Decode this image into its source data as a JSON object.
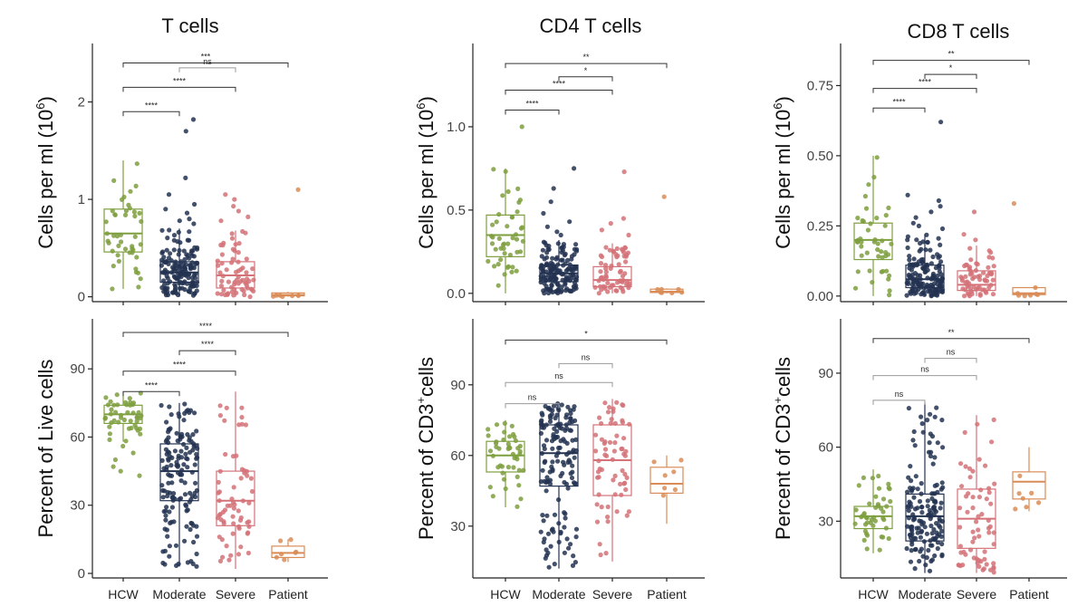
{
  "figure": {
    "categories": [
      "HCW",
      "Moderate",
      "Severe",
      "Patient"
    ],
    "category_colors": [
      "#7E9F3E",
      "#233251",
      "#D47278",
      "#D98C57"
    ],
    "column_titles": [
      "T cells",
      "CD4 T cells",
      "CD8 T cells"
    ]
  },
  "chart_data": [
    {
      "type": "box",
      "title": "T cells",
      "ylabel": "Cells per ml (10^6)",
      "ylabel_parts": [
        "Cells per ml (10",
        "6",
        ")"
      ],
      "categories": [
        "HCW",
        "Moderate",
        "Severe",
        "Patient"
      ],
      "ylim": [
        -0.05,
        2.6
      ],
      "yticks": [
        0,
        1,
        2
      ],
      "ytick_labels": [
        "0",
        "1",
        "2"
      ],
      "boxes": [
        {
          "q1": 0.46,
          "median": 0.65,
          "q3": 0.9,
          "whisker_low": 0.08,
          "whisker_high": 1.4,
          "n": 45
        },
        {
          "q1": 0.15,
          "median": 0.25,
          "q3": 0.36,
          "whisker_low": 0.0,
          "whisker_high": 0.7,
          "n": 150,
          "outliers": [
            1.82,
            1.7,
            1.22,
            1.05,
            0.95,
            0.9,
            0.86,
            0.8,
            0.78,
            0.75
          ]
        },
        {
          "q1": 0.09,
          "median": 0.22,
          "q3": 0.36,
          "whisker_low": 0.0,
          "whisker_high": 0.68,
          "n": 65,
          "outliers": [
            1.05,
            1.0,
            0.93,
            0.88,
            0.82,
            0.78
          ]
        },
        {
          "q1": 0.01,
          "median": 0.02,
          "q3": 0.04,
          "whisker_low": 0.0,
          "whisker_high": 0.05,
          "n": 7,
          "outliers": [
            1.1
          ]
        }
      ],
      "significance": [
        {
          "from": 0,
          "to": 3,
          "label": "***",
          "y": 2.4
        },
        {
          "from": 1,
          "to": 2,
          "label": "ns",
          "y": 2.35
        },
        {
          "from": 0,
          "to": 2,
          "label": "****",
          "y": 2.15
        },
        {
          "from": 0,
          "to": 1,
          "label": "****",
          "y": 1.9
        }
      ]
    },
    {
      "type": "box",
      "title": "CD4 T cells",
      "ylabel": "Cells per ml (10^6)",
      "ylabel_parts": [
        "Cells per ml (10",
        "6",
        ")"
      ],
      "categories": [
        "HCW",
        "Moderate",
        "Severe",
        "Patient"
      ],
      "ylim": [
        -0.05,
        1.5
      ],
      "yticks": [
        0.0,
        0.5,
        1.0
      ],
      "ytick_labels": [
        "0.0",
        "0.5",
        "1.0"
      ],
      "boxes": [
        {
          "q1": 0.22,
          "median": 0.35,
          "q3": 0.47,
          "whisker_low": 0.0,
          "whisker_high": 0.75,
          "n": 45,
          "outliers": [
            1.0
          ]
        },
        {
          "q1": 0.07,
          "median": 0.12,
          "q3": 0.17,
          "whisker_low": 0.0,
          "whisker_high": 0.32,
          "n": 150,
          "outliers": [
            0.75,
            0.63,
            0.55,
            0.48,
            0.43,
            0.4,
            0.37,
            0.35
          ]
        },
        {
          "q1": 0.04,
          "median": 0.08,
          "q3": 0.16,
          "whisker_low": 0.0,
          "whisker_high": 0.3,
          "n": 65,
          "outliers": [
            0.73,
            0.45,
            0.42,
            0.38,
            0.35
          ]
        },
        {
          "q1": 0.005,
          "median": 0.01,
          "q3": 0.025,
          "whisker_low": 0.0,
          "whisker_high": 0.03,
          "n": 7,
          "outliers": [
            0.58
          ]
        }
      ],
      "significance": [
        {
          "from": 0,
          "to": 3,
          "label": "**",
          "y": 1.38
        },
        {
          "from": 1,
          "to": 2,
          "label": "*",
          "y": 1.3
        },
        {
          "from": 0,
          "to": 2,
          "label": "****",
          "y": 1.22
        },
        {
          "from": 0,
          "to": 1,
          "label": "****",
          "y": 1.1
        }
      ]
    },
    {
      "type": "box",
      "title": "CD8 T cells",
      "ylabel": "Cells per ml (10^6)",
      "ylabel_parts": [
        "Cells per ml (10",
        "6",
        ")"
      ],
      "categories": [
        "HCW",
        "Moderate",
        "Severe",
        "Patient"
      ],
      "ylim": [
        -0.02,
        0.9
      ],
      "yticks": [
        0.0,
        0.25,
        0.5,
        0.75
      ],
      "ytick_labels": [
        "0.00",
        "0.25",
        "0.50",
        "0.75"
      ],
      "boxes": [
        {
          "q1": 0.13,
          "median": 0.2,
          "q3": 0.26,
          "whisker_low": 0.0,
          "whisker_high": 0.5,
          "n": 45
        },
        {
          "q1": 0.03,
          "median": 0.06,
          "q3": 0.11,
          "whisker_low": 0.0,
          "whisker_high": 0.22,
          "n": 150,
          "outliers": [
            0.62,
            0.36,
            0.34,
            0.32,
            0.3,
            0.28,
            0.26,
            0.25,
            0.24
          ]
        },
        {
          "q1": 0.02,
          "median": 0.04,
          "q3": 0.09,
          "whisker_low": 0.0,
          "whisker_high": 0.18,
          "n": 65,
          "outliers": [
            0.3,
            0.22,
            0.2
          ]
        },
        {
          "q1": 0.005,
          "median": 0.01,
          "q3": 0.03,
          "whisker_low": 0.0,
          "whisker_high": 0.03,
          "n": 7,
          "outliers": [
            0.33
          ]
        }
      ],
      "significance": [
        {
          "from": 0,
          "to": 3,
          "label": "**",
          "y": 0.84
        },
        {
          "from": 1,
          "to": 2,
          "label": "*",
          "y": 0.79
        },
        {
          "from": 0,
          "to": 2,
          "label": "****",
          "y": 0.74
        },
        {
          "from": 0,
          "to": 1,
          "label": "****",
          "y": 0.67
        }
      ]
    },
    {
      "type": "box",
      "title": "",
      "ylabel": "Percent of Live cells",
      "ylabel_parts": [
        "Percent of Live cells",
        "",
        ""
      ],
      "categories": [
        "HCW",
        "Moderate",
        "Severe",
        "Patient"
      ],
      "ylim": [
        -2,
        112
      ],
      "yticks": [
        0,
        30,
        60,
        90
      ],
      "ytick_labels": [
        "0",
        "30",
        "60",
        "90"
      ],
      "boxes": [
        {
          "q1": 66,
          "median": 70,
          "q3": 74,
          "whisker_low": 58,
          "whisker_high": 80,
          "n": 45,
          "outliers": [
            56,
            53,
            50,
            47,
            45,
            43
          ]
        },
        {
          "q1": 32,
          "median": 45,
          "q3": 57,
          "whisker_low": 3,
          "whisker_high": 75,
          "n": 150
        },
        {
          "q1": 21,
          "median": 32,
          "q3": 45,
          "whisker_low": 2,
          "whisker_high": 80,
          "n": 65
        },
        {
          "q1": 7,
          "median": 9,
          "q3": 12,
          "whisker_low": 5,
          "whisker_high": 15,
          "n": 7
        }
      ],
      "significance": [
        {
          "from": 0,
          "to": 3,
          "label": "****",
          "y": 106
        },
        {
          "from": 1,
          "to": 2,
          "label": "****",
          "y": 98
        },
        {
          "from": 0,
          "to": 2,
          "label": "****",
          "y": 89
        },
        {
          "from": 0,
          "to": 1,
          "label": "****",
          "y": 80
        }
      ]
    },
    {
      "type": "box",
      "title": "",
      "ylabel": "Percent of CD3+cells",
      "ylabel_parts": [
        "Percent of CD3",
        "+",
        "cells"
      ],
      "categories": [
        "HCW",
        "Moderate",
        "Severe",
        "Patient"
      ],
      "ylim": [
        8,
        118
      ],
      "yticks": [
        30,
        60,
        90
      ],
      "ytick_labels": [
        "30",
        "60",
        "90"
      ],
      "boxes": [
        {
          "q1": 53,
          "median": 60,
          "q3": 66,
          "whisker_low": 38,
          "whisker_high": 75,
          "n": 45
        },
        {
          "q1": 47,
          "median": 61,
          "q3": 73,
          "whisker_low": 12,
          "whisker_high": 82,
          "n": 150
        },
        {
          "q1": 43,
          "median": 58,
          "q3": 73,
          "whisker_low": 15,
          "whisker_high": 84,
          "n": 65
        },
        {
          "q1": 44,
          "median": 48,
          "q3": 55,
          "whisker_low": 31,
          "whisker_high": 60,
          "n": 7
        }
      ],
      "significance": [
        {
          "from": 0,
          "to": 3,
          "label": "*",
          "y": 109
        },
        {
          "from": 1,
          "to": 2,
          "label": "ns",
          "y": 99
        },
        {
          "from": 0,
          "to": 2,
          "label": "ns",
          "y": 91
        },
        {
          "from": 0,
          "to": 1,
          "label": "ns",
          "y": 82
        }
      ]
    },
    {
      "type": "box",
      "title": "",
      "ylabel": "Percent of CD3+cells",
      "ylabel_parts": [
        "Percent of CD3",
        "+",
        "cells"
      ],
      "categories": [
        "HCW",
        "Moderate",
        "Severe",
        "Patient"
      ],
      "ylim": [
        7,
        112
      ],
      "yticks": [
        30,
        60,
        90
      ],
      "ytick_labels": [
        "30",
        "60",
        "90"
      ],
      "boxes": [
        {
          "q1": 27,
          "median": 32,
          "q3": 36,
          "whisker_low": 17,
          "whisker_high": 51,
          "n": 45
        },
        {
          "q1": 22,
          "median": 32,
          "q3": 41,
          "whisker_low": 9,
          "whisker_high": 78,
          "n": 150
        },
        {
          "q1": 19,
          "median": 31,
          "q3": 43,
          "whisker_low": 9,
          "whisker_high": 73,
          "n": 65
        },
        {
          "q1": 39,
          "median": 46,
          "q3": 50,
          "whisker_low": 34,
          "whisker_high": 60,
          "n": 7
        }
      ],
      "significance": [
        {
          "from": 0,
          "to": 3,
          "label": "**",
          "y": 104
        },
        {
          "from": 1,
          "to": 2,
          "label": "ns",
          "y": 96
        },
        {
          "from": 0,
          "to": 2,
          "label": "ns",
          "y": 89
        },
        {
          "from": 0,
          "to": 1,
          "label": "ns",
          "y": 79
        }
      ]
    }
  ]
}
